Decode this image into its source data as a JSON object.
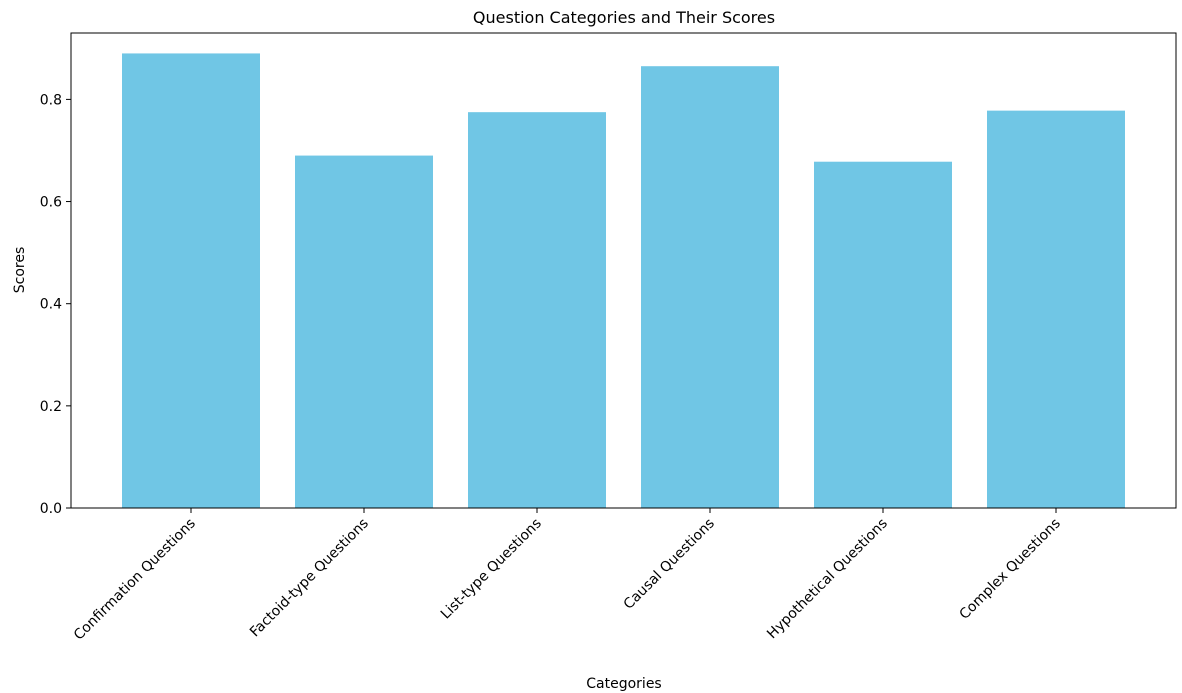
{
  "chart_data": {
    "type": "bar",
    "title": "Question Categories and Their Scores",
    "xlabel": "Categories",
    "ylabel": "Scores",
    "categories": [
      "Confirmation Questions",
      "Factoid-type Questions",
      "List-type Questions",
      "Causal Questions",
      "Hypothetical Questions",
      "Complex Questions"
    ],
    "values": [
      0.89,
      0.69,
      0.775,
      0.865,
      0.678,
      0.778
    ],
    "ylim": [
      0,
      0.93
    ],
    "yticks": [
      0.0,
      0.2,
      0.4,
      0.6,
      0.8
    ],
    "ytick_labels": [
      "0.0",
      "0.2",
      "0.4",
      "0.6",
      "0.8"
    ],
    "bar_color": "#70c6e5",
    "grid": false,
    "legend": "none"
  }
}
